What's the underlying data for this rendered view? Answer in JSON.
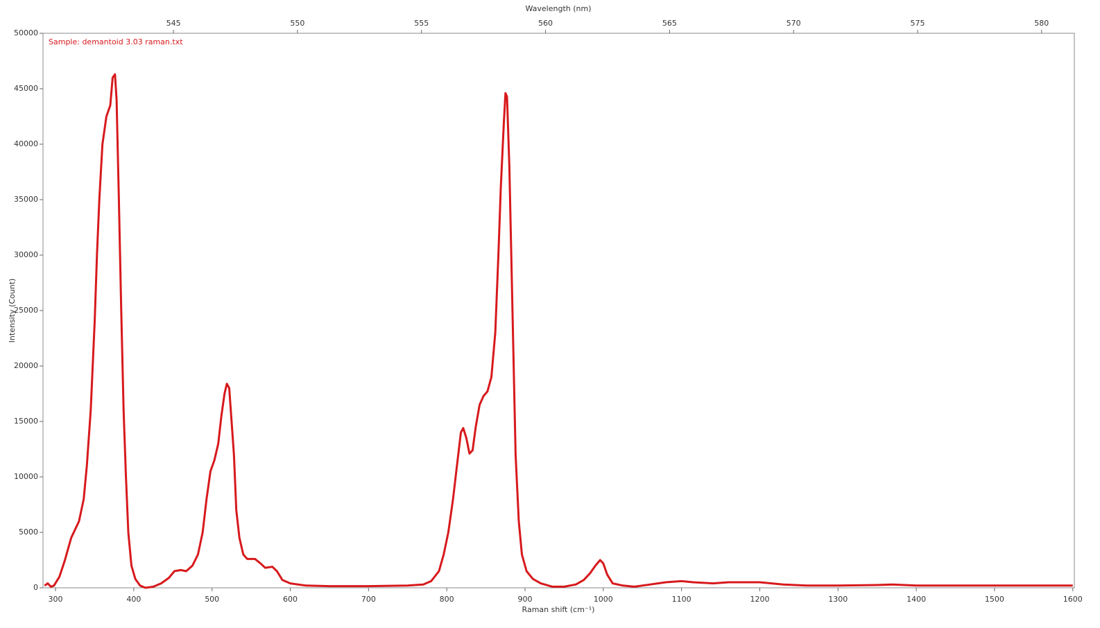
{
  "chart_data": {
    "type": "line",
    "annotation": "Sample: demantoid 3.03 raman.txt",
    "xlabel": "Raman shift (cm⁻¹)",
    "ylabel": "Intensity (Count)",
    "x2label": "Wavelength (nm)",
    "color": "#d7191c",
    "xlim": [
      284,
      1602
    ],
    "xticks": [
      300,
      400,
      500,
      600,
      700,
      800,
      900,
      1000,
      1100,
      1200,
      1300,
      1400,
      1500,
      1600
    ],
    "ylim": [
      0,
      50000
    ],
    "yticks": [
      0,
      5000,
      10000,
      15000,
      20000,
      25000,
      30000,
      35000,
      40000,
      45000,
      50000
    ],
    "x2lim": [
      539.74,
      581.32
    ],
    "x2ticks": [
      545,
      550,
      555,
      560,
      565,
      570,
      575,
      580
    ],
    "x": [
      286,
      290,
      294,
      298,
      305,
      312,
      320,
      330,
      336,
      340,
      345,
      350,
      353,
      356,
      360,
      365,
      370,
      373,
      376,
      378,
      381,
      384,
      387,
      390,
      393,
      397,
      402,
      408,
      415,
      425,
      435,
      445,
      452,
      460,
      467,
      475,
      482,
      488,
      493,
      498,
      503,
      508,
      512,
      516,
      519,
      522,
      525,
      528,
      531,
      535,
      540,
      545,
      555,
      562,
      568,
      577,
      583,
      590,
      600,
      620,
      650,
      700,
      750,
      770,
      780,
      790,
      796,
      802,
      808,
      813,
      818,
      821,
      825,
      829,
      833,
      837,
      842,
      847,
      852,
      857,
      862,
      866,
      869,
      873,
      875,
      877,
      880,
      884,
      888,
      892,
      896,
      902,
      910,
      920,
      935,
      950,
      965,
      975,
      983,
      990,
      996,
      1000,
      1005,
      1012,
      1025,
      1040,
      1060,
      1080,
      1100,
      1115,
      1140,
      1160,
      1200,
      1230,
      1260,
      1300,
      1350,
      1370,
      1400,
      1450,
      1500,
      1550,
      1600
    ],
    "values": [
      200,
      400,
      100,
      200,
      1000,
      2500,
      4500,
      6000,
      8000,
      11000,
      16000,
      24000,
      30000,
      35000,
      40000,
      42500,
      43500,
      46000,
      46300,
      44000,
      35000,
      25000,
      16000,
      10000,
      5000,
      2000,
      800,
      200,
      0,
      100,
      400,
      900,
      1500,
      1600,
      1500,
      2000,
      3000,
      5000,
      8000,
      10500,
      11500,
      13000,
      15500,
      17500,
      18400,
      18000,
      15000,
      12000,
      7000,
      4500,
      3000,
      2600,
      2600,
      2200,
      1800,
      1900,
      1500,
      700,
      400,
      200,
      150,
      150,
      200,
      300,
      600,
      1500,
      3000,
      5000,
      8000,
      11000,
      14000,
      14400,
      13500,
      12100,
      12400,
      14500,
      16500,
      17300,
      17700,
      19000,
      23000,
      30000,
      36000,
      42000,
      44600,
      44300,
      38000,
      25000,
      12000,
      6000,
      3000,
      1500,
      800,
      400,
      100,
      100,
      300,
      700,
      1300,
      2000,
      2500,
      2200,
      1200,
      400,
      200,
      100,
      300,
      500,
      600,
      500,
      400,
      500,
      500,
      300,
      200,
      200,
      250,
      300,
      200,
      200,
      200,
      200,
      200
    ]
  }
}
